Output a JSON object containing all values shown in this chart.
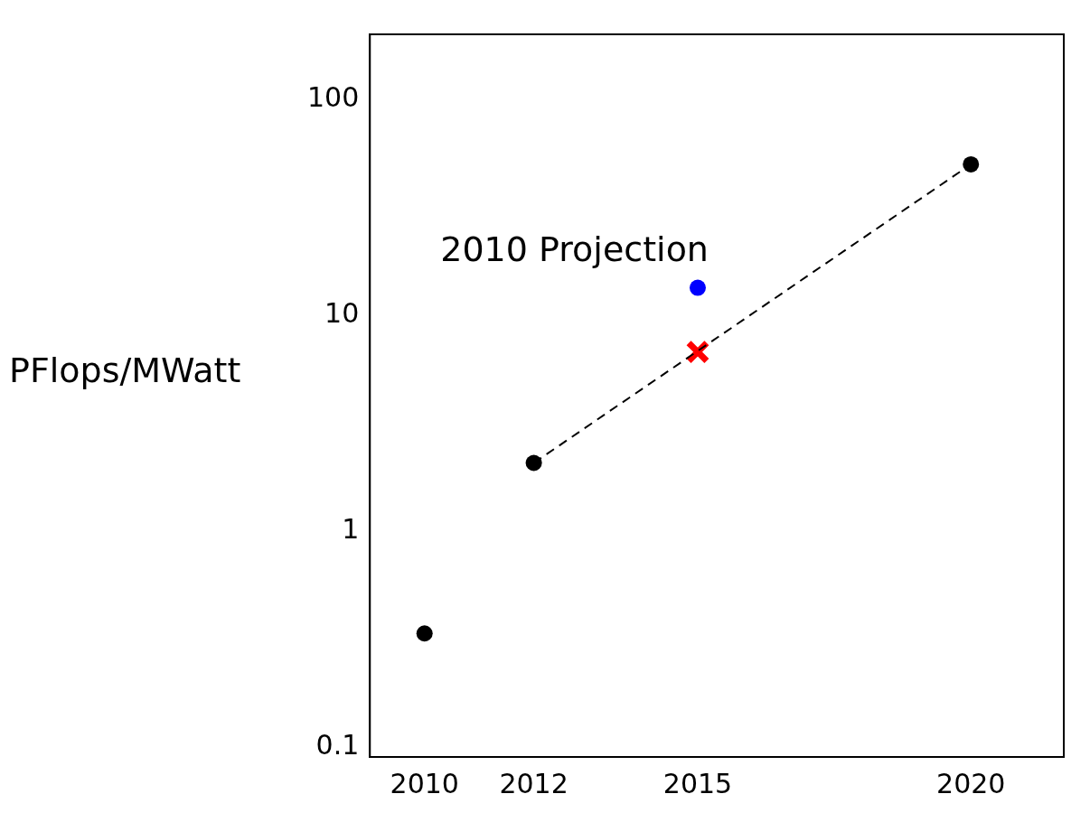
{
  "chart_data": {
    "type": "scatter",
    "ylabel": "PFlops/MWatt",
    "log": "y",
    "grid": false,
    "legend": false,
    "xlim": [
      2009,
      2021.7
    ],
    "xticks": [
      2010,
      2012,
      2015,
      2020
    ],
    "ylim": [
      0.09,
      200
    ],
    "yticks": [
      0.1,
      1,
      10,
      100
    ],
    "annotations": [
      {
        "text": "2010 Projection",
        "x": 2015,
        "y": 13.4
      }
    ],
    "series": [
      {
        "type": "line",
        "x": [
          2012,
          2020
        ],
        "values": [
          2.07,
          50
        ],
        "color": "#000000",
        "line_style": "dashed",
        "marker": "none"
      },
      {
        "type": "scatter",
        "x": [
          2010,
          2012,
          2020
        ],
        "values": [
          0.336,
          2.07,
          50
        ],
        "color": "#000000",
        "marker": "circle"
      },
      {
        "type": "scatter",
        "x": [
          2015
        ],
        "values": [
          6.76
        ],
        "color": "#ff0000",
        "marker": "cross"
      },
      {
        "type": "scatter",
        "x": [
          2015
        ],
        "values": [
          13.4
        ],
        "color": "#0000ff",
        "marker": "circle"
      }
    ]
  }
}
